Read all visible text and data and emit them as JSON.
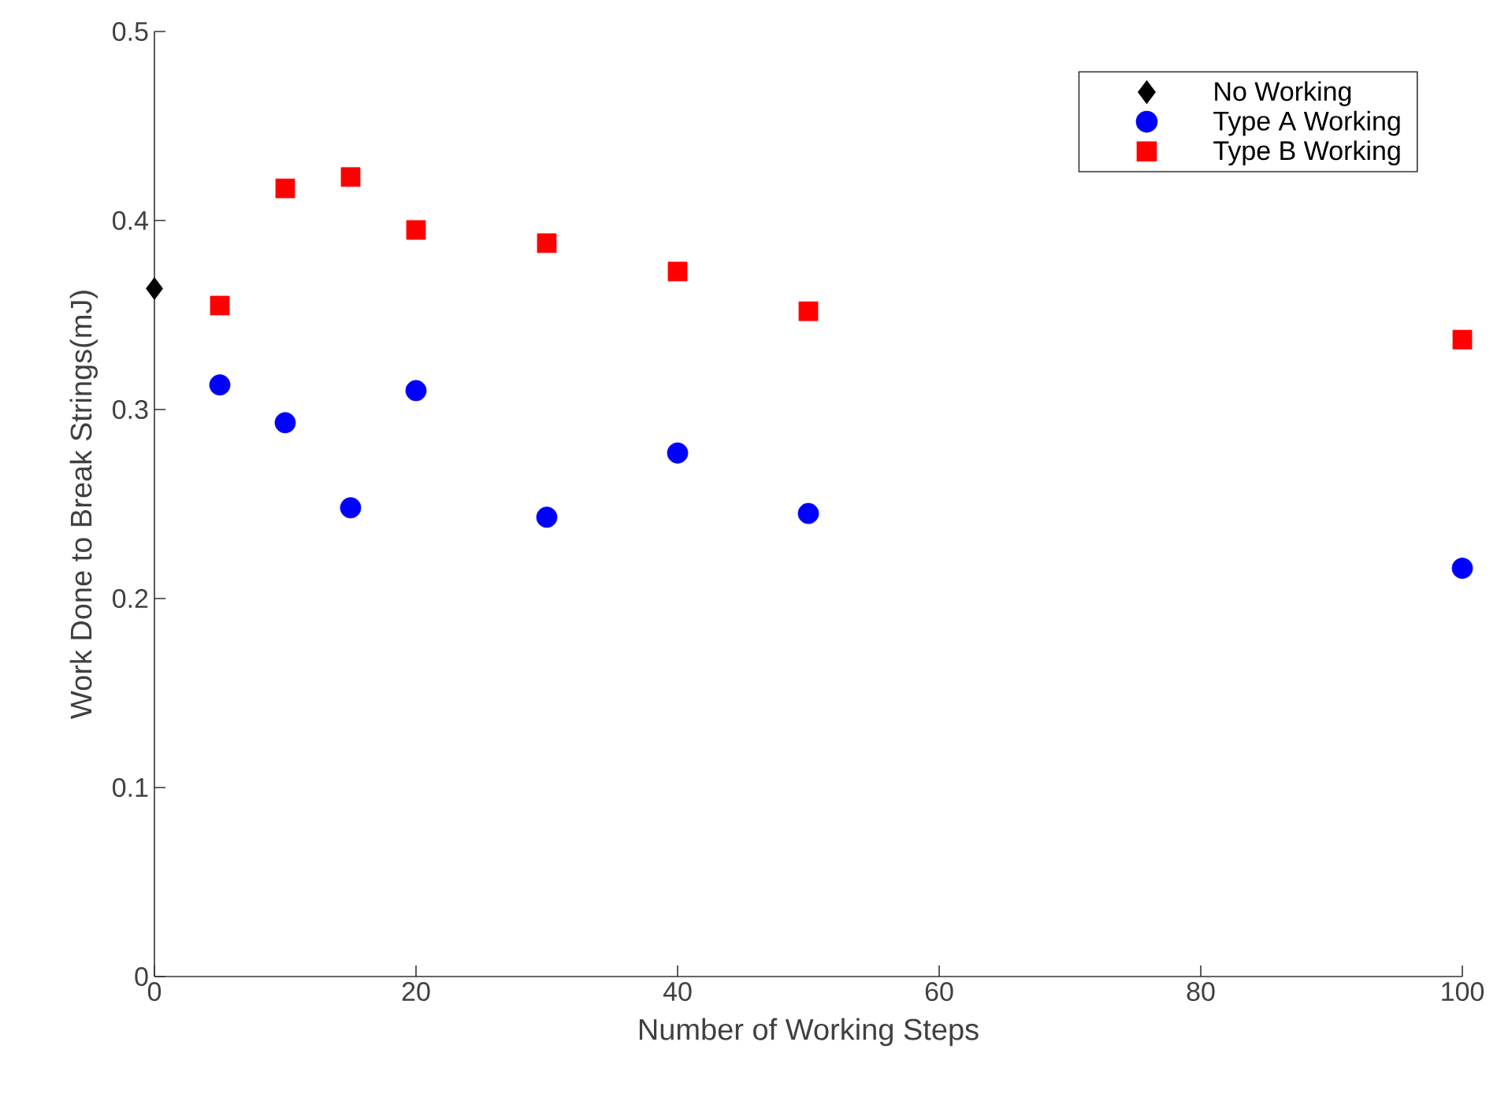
{
  "chart_data": {
    "type": "scatter",
    "xlabel": "Number of Working Steps",
    "ylabel": "Work Done to Break Strings(mJ)",
    "xlim": [
      0,
      100
    ],
    "ylim": [
      0,
      0.5
    ],
    "xticks": [
      0,
      20,
      40,
      60,
      80,
      100
    ],
    "yticks": [
      0,
      0.1,
      0.2,
      0.3,
      0.4,
      0.5
    ],
    "legend": "top right",
    "series": [
      {
        "name": "No Working",
        "color": "#000000",
        "marker": "diamond",
        "x": [
          0
        ],
        "values": [
          0.364
        ]
      },
      {
        "name": "Type A Working",
        "color": "#0000ff",
        "marker": "circle",
        "x": [
          5,
          10,
          15,
          20,
          30,
          40,
          50,
          100
        ],
        "values": [
          0.313,
          0.293,
          0.248,
          0.31,
          0.243,
          0.277,
          0.245,
          0.216
        ]
      },
      {
        "name": "Type B Working",
        "color": "#ff0000",
        "marker": "square",
        "x": [
          5,
          10,
          15,
          20,
          30,
          40,
          50,
          100
        ],
        "values": [
          0.355,
          0.417,
          0.423,
          0.395,
          0.388,
          0.373,
          0.352,
          0.337
        ]
      }
    ]
  }
}
